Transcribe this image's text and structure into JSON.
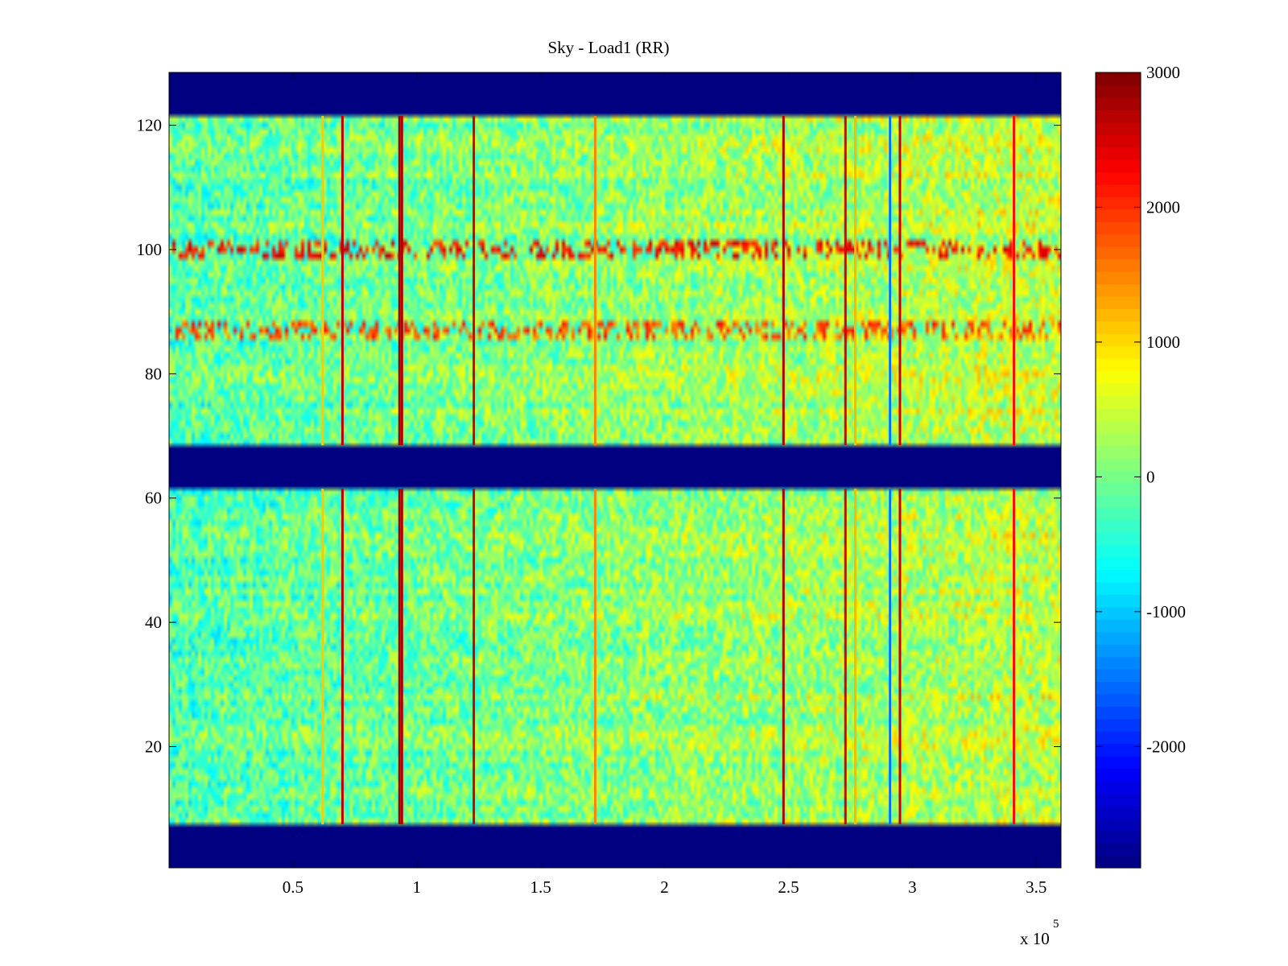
{
  "chart_data": {
    "type": "heatmap",
    "title": "Sky - Load1 (RR)",
    "xlabel": "",
    "ylabel": "",
    "x_exponent_label": "x 10",
    "x_exponent_power": "5",
    "xlim": [
      0,
      3.6
    ],
    "ylim": [
      0.5,
      128.5
    ],
    "x_ticks": [
      {
        "value": 0.5,
        "label": "0.5"
      },
      {
        "value": 1.0,
        "label": "1"
      },
      {
        "value": 1.5,
        "label": "1.5"
      },
      {
        "value": 2.0,
        "label": "2"
      },
      {
        "value": 2.5,
        "label": "2.5"
      },
      {
        "value": 3.0,
        "label": "3"
      },
      {
        "value": 3.5,
        "label": "3.5"
      }
    ],
    "y_ticks": [
      {
        "value": 20,
        "label": "20"
      },
      {
        "value": 40,
        "label": "40"
      },
      {
        "value": 60,
        "label": "60"
      },
      {
        "value": 80,
        "label": "80"
      },
      {
        "value": 100,
        "label": "100"
      },
      {
        "value": 120,
        "label": "120"
      }
    ],
    "colorbar": {
      "colormap": "jet",
      "clim": [
        -2900,
        3000
      ],
      "ticks": [
        {
          "value": -2000,
          "label": "-2000"
        },
        {
          "value": -1000,
          "label": "-1000"
        },
        {
          "value": 0,
          "label": "0"
        },
        {
          "value": 1000,
          "label": "1000"
        },
        {
          "value": 2000,
          "label": "2000"
        },
        {
          "value": 3000,
          "label": "3000"
        }
      ]
    },
    "masked_channel_ranges": [
      [
        1,
        7
      ],
      [
        62,
        68
      ],
      [
        122,
        128
      ]
    ],
    "masked_value": -2900,
    "background_value": 150,
    "rfi_vertical_lines": [
      {
        "x": 0.62,
        "value": 1100
      },
      {
        "x": 0.7,
        "value": 2600
      },
      {
        "x": 0.93,
        "value": 2800
      },
      {
        "x": 0.94,
        "value": 2700
      },
      {
        "x": 1.23,
        "value": 2500
      },
      {
        "x": 1.72,
        "value": 1500
      },
      {
        "x": 2.48,
        "value": 2700
      },
      {
        "x": 2.73,
        "value": 2500
      },
      {
        "x": 2.77,
        "value": 1200
      },
      {
        "x": 2.91,
        "value": -1500
      },
      {
        "x": 2.95,
        "value": 2600
      },
      {
        "x": 3.41,
        "value": 2200
      }
    ],
    "rfi_horizontal_bands": [
      {
        "y": 100,
        "value": 2200
      },
      {
        "y": 87,
        "value": 1800
      }
    ]
  }
}
